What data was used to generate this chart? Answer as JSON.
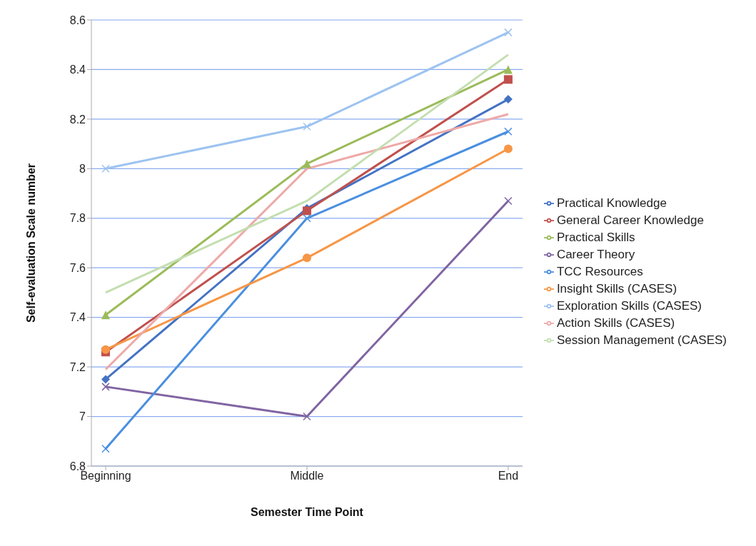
{
  "chart_data": {
    "type": "line",
    "xlabel": "Semester Time Point",
    "ylabel": "Self-evaluation Scale number",
    "categories": [
      "Beginning",
      "Middle",
      "End"
    ],
    "ylim": [
      6.8,
      8.6
    ],
    "yticks": [
      6.8,
      7,
      7.2,
      7.4,
      7.6,
      7.8,
      8,
      8.2,
      8.4,
      8.6
    ],
    "grid": "y",
    "legend": "right",
    "line_style": "solid",
    "series": [
      {
        "name": "Practical Knowledge",
        "color": "#4472c4",
        "marker": "diamond",
        "values": [
          7.15,
          7.84,
          8.28
        ]
      },
      {
        "name": "General Career Knowledge",
        "color": "#c0504d",
        "marker": "square",
        "values": [
          7.26,
          7.83,
          8.36
        ]
      },
      {
        "name": "Practical Skills",
        "color": "#9bbb59",
        "marker": "triangle",
        "values": [
          7.41,
          8.02,
          8.4
        ]
      },
      {
        "name": "Career Theory",
        "color": "#8064a2",
        "marker": "cross",
        "values": [
          7.12,
          7.0,
          7.87
        ]
      },
      {
        "name": "TCC Resources",
        "color": "#4a8fe0",
        "marker": "cross",
        "values": [
          6.87,
          7.8,
          8.15
        ]
      },
      {
        "name": "Insight Skills (CASES)",
        "color": "#f79646",
        "marker": "circle",
        "values": [
          7.27,
          7.64,
          8.08
        ]
      },
      {
        "name": "Exploration Skills (CASES)",
        "color": "#9dc3f0",
        "marker": "cross",
        "values": [
          8.0,
          8.17,
          8.55
        ]
      },
      {
        "name": "Action Skills (CASES)",
        "color": "#eea9a7",
        "marker": "none",
        "values": [
          7.19,
          8.0,
          8.22
        ]
      },
      {
        "name": "Session Management (CASES)",
        "color": "#c3deb0",
        "marker": "none",
        "values": [
          7.5,
          7.87,
          8.46
        ]
      }
    ]
  }
}
